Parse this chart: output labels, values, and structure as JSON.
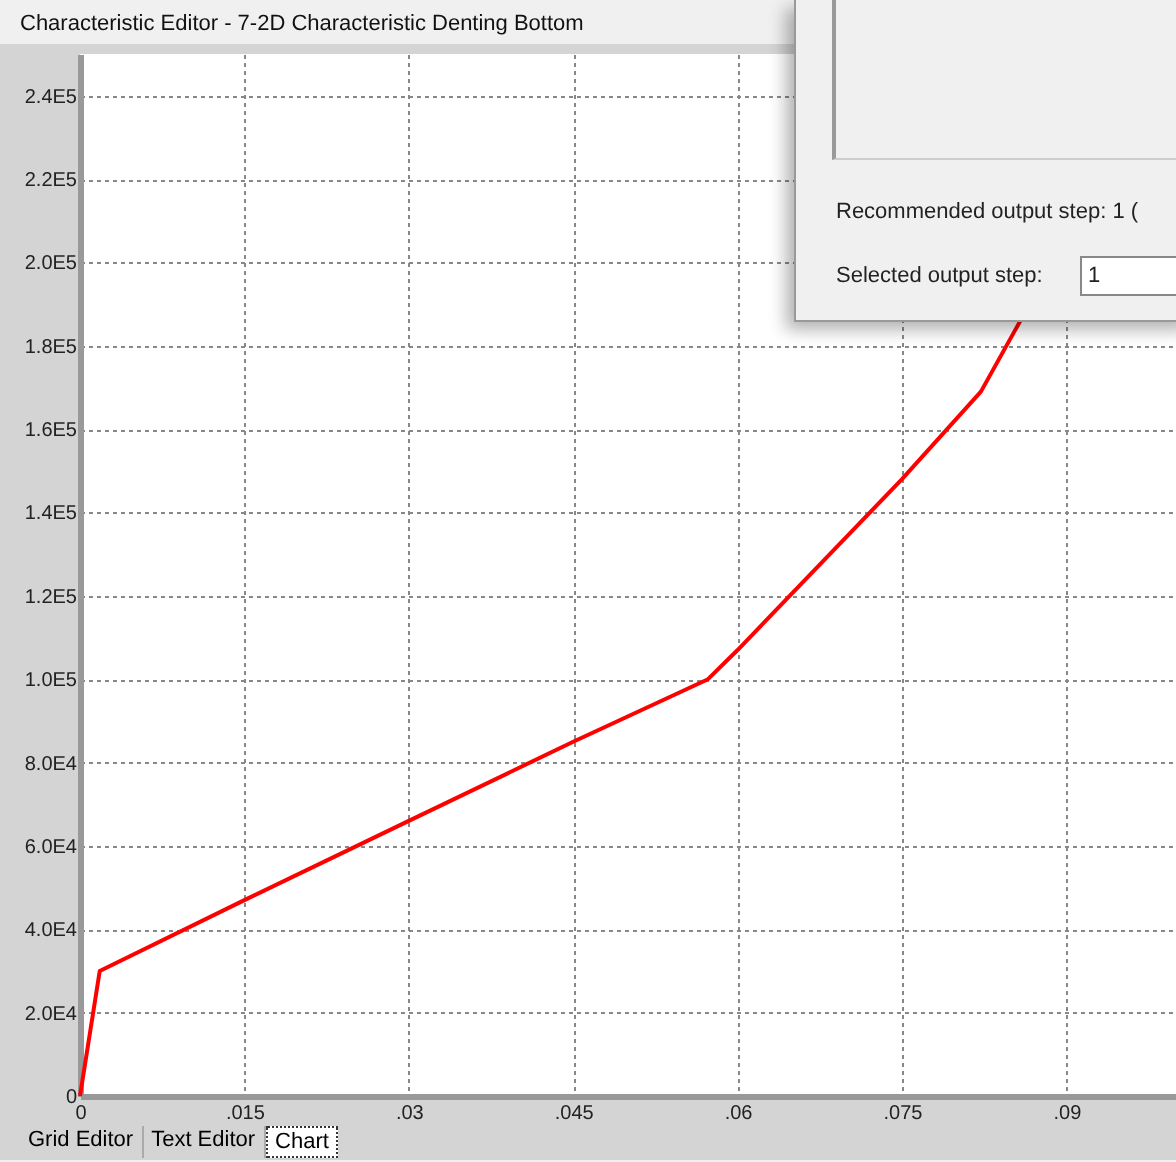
{
  "chart_data": {
    "type": "line",
    "title": "Characteristic Editor - 7-2D Characteristic Denting Bottom",
    "x": [
      0,
      0.0018,
      0.015,
      0.03,
      0.045,
      0.0573,
      0.06,
      0.075,
      0.0822,
      0.0858
    ],
    "series": [
      {
        "color": "#ff0000",
        "values": [
          0,
          30000,
          47000,
          66000,
          85000,
          100000,
          107000,
          148000,
          169000,
          186000
        ]
      }
    ],
    "xlim": [
      0,
      0.1
    ],
    "ylim": [
      0,
      250000
    ],
    "xticks": [
      0,
      {
        "value": 0.015,
        "label": ".015"
      },
      {
        "value": 0.03,
        "label": ".03"
      },
      {
        "value": 0.045,
        "label": ".045"
      },
      {
        "value": 0.06,
        "label": ".06"
      },
      {
        "value": 0.075,
        "label": ".075"
      },
      {
        "value": 0.09,
        "label": ".09"
      }
    ],
    "yticks": [
      0,
      {
        "value": 20000,
        "label": "2.0E4"
      },
      {
        "value": 40000,
        "label": "4.0E4"
      },
      {
        "value": 60000,
        "label": "6.0E4"
      },
      {
        "value": 80000,
        "label": "8.0E4"
      },
      {
        "value": 100000,
        "label": "1.0E5"
      },
      {
        "value": 120000,
        "label": "1.2E5"
      },
      {
        "value": 140000,
        "label": "1.4E5"
      },
      {
        "value": 160000,
        "label": "1.6E5"
      },
      {
        "value": 180000,
        "label": "1.8E5"
      },
      {
        "value": 200000,
        "label": "2.0E5"
      },
      {
        "value": 220000,
        "label": "2.2E5"
      },
      {
        "value": 240000,
        "label": "2.4E5"
      }
    ],
    "grid": true,
    "annotations": [
      "Recommended output step: 1 (",
      "Selected output step:",
      "1",
      "Grid Editor",
      "Text Editor",
      "Chart"
    ]
  }
}
